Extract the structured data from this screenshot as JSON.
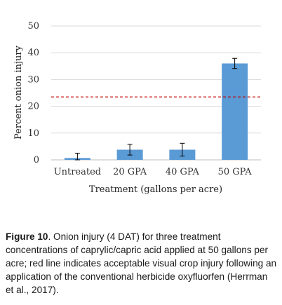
{
  "chart_data": {
    "type": "bar",
    "categories": [
      "Untreated",
      "20 GPA",
      "40 GPA",
      "50 GPA"
    ],
    "values": [
      0.7,
      3.8,
      3.8,
      36
    ],
    "error": [
      1.8,
      2.0,
      2.4,
      1.9
    ],
    "reference_line": 23.5,
    "title": "",
    "xlabel": "Treatment (gallons per acre)",
    "ylabel": "Percent onion injury",
    "ylim": [
      0,
      50
    ],
    "yticks": [
      0,
      10,
      20,
      30,
      40,
      50
    ],
    "grid": true,
    "bar_color": "#5b9bd5",
    "reference_color": "#c00000"
  },
  "caption": {
    "label": "Figure 10",
    "text": ". Onion injury (4 DAT) for three treatment concentrations of caprylic/capric acid applied at 50 gallons per acre; red line indicates acceptable visual crop injury following an application of the conventional herbicide oxyfluorfen (Herrman et al., 2017)."
  }
}
